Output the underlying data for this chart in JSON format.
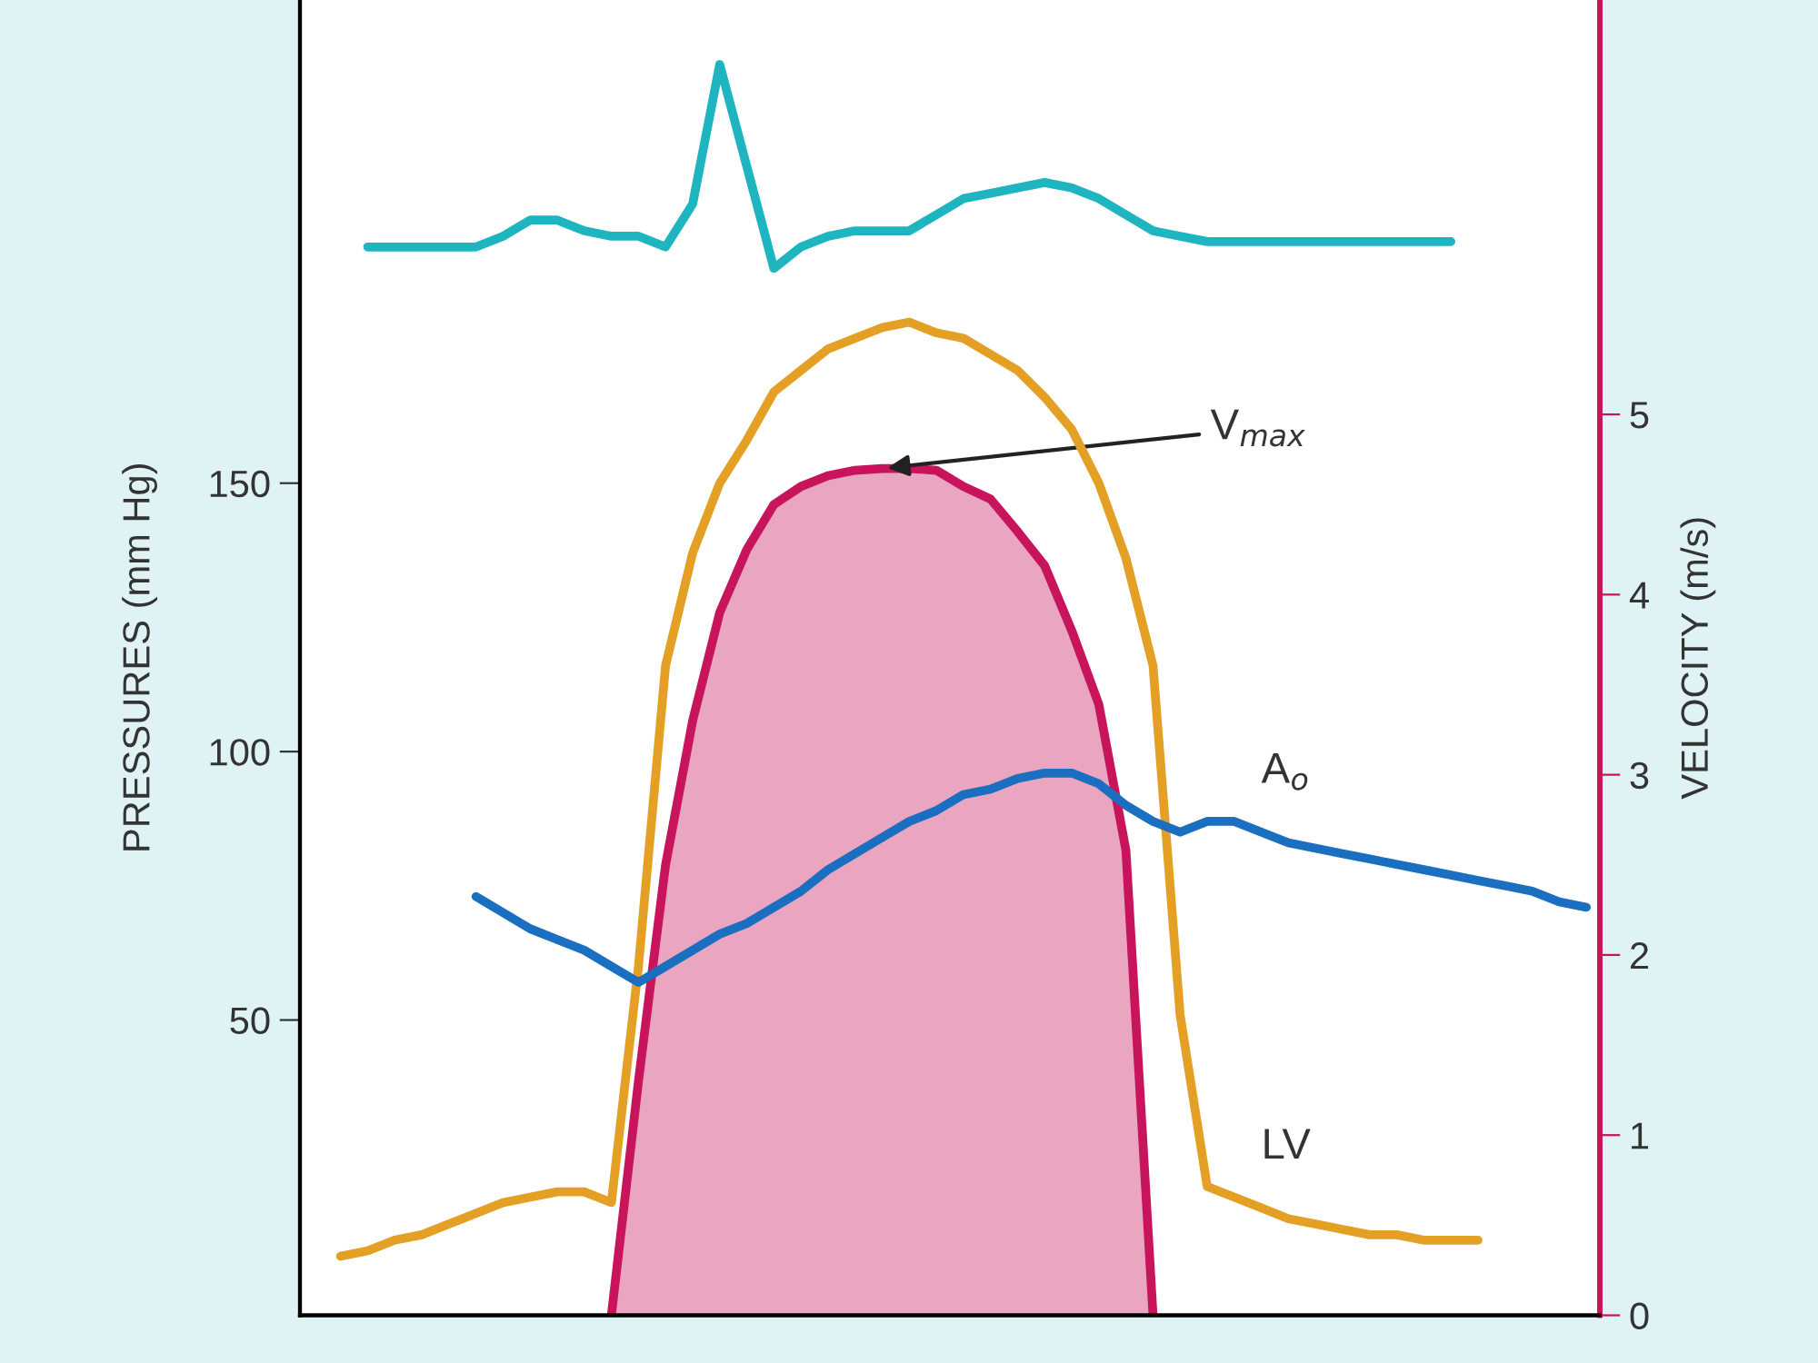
{
  "chart_data": {
    "type": "line",
    "categories": [
      null,
      null,
      null,
      null,
      null,
      null,
      null,
      null,
      null,
      null,
      null,
      null,
      null,
      null,
      null,
      null,
      null,
      null,
      null,
      null,
      null,
      null,
      null,
      null,
      null,
      null,
      null,
      null,
      null,
      null,
      null,
      null,
      null,
      null,
      null,
      null,
      null,
      null,
      null,
      null,
      null,
      null,
      null,
      null,
      null,
      null,
      null,
      null
    ],
    "ylim": [
      -5,
      240
    ],
    "yticks": [
      50,
      100,
      150
    ],
    "y2lim": [
      0,
      7.3
    ],
    "y2ticks": [
      0,
      1,
      2,
      3,
      4,
      5
    ],
    "ylabel": "PRESSURES (mm Hg)",
    "y2label": "VELOCITY (m/s)",
    "tick_labels": "y",
    "grid": false,
    "legend": false,
    "series": [
      {
        "color": "#1fb5c0",
        "values": [
          null,
          null,
          194,
          194,
          194,
          194,
          194,
          196,
          199,
          199,
          197,
          196,
          196,
          194,
          202,
          228,
          209,
          190,
          194,
          196,
          197,
          197,
          197,
          200,
          203,
          204,
          205,
          206,
          205,
          203,
          200,
          197,
          196,
          195,
          195,
          195,
          195,
          195,
          195,
          195,
          195,
          195,
          195,
          null,
          null,
          null,
          null,
          null
        ]
      },
      {
        "name": "LV",
        "color": "#e3a025",
        "values": [
          null,
          6,
          7,
          9,
          10,
          12,
          14,
          16,
          17,
          18,
          18,
          16,
          60,
          116,
          137,
          150,
          158,
          167,
          171,
          175,
          177,
          179,
          180,
          178,
          177,
          174,
          171,
          166,
          160,
          150,
          136,
          116,
          51,
          19,
          17,
          15,
          13,
          12,
          11,
          10,
          10,
          9,
          9,
          9,
          null,
          null,
          null,
          null
        ]
      },
      {
        "name": "A$_{o}$",
        "color": "#1a6fc0",
        "values": [
          null,
          null,
          null,
          null,
          null,
          null,
          73,
          70,
          67,
          65,
          63,
          60,
          57,
          60,
          63,
          66,
          68,
          71,
          74,
          78,
          81,
          84,
          87,
          89,
          92,
          93,
          95,
          96,
          96,
          94,
          90,
          87,
          85,
          87,
          87,
          85,
          83,
          82,
          81,
          80,
          79,
          78,
          77,
          76,
          75,
          74,
          72,
          71
        ]
      },
      {
        "type": "area",
        "axis": "y2",
        "color": "#c8145a",
        "values": [
          null,
          null,
          null,
          null,
          null,
          null,
          null,
          null,
          null,
          null,
          null,
          0,
          1.3,
          2.5,
          3.3,
          3.9,
          4.25,
          4.5,
          4.6,
          4.66,
          4.69,
          4.7,
          4.7,
          4.69,
          4.6,
          4.53,
          4.35,
          4.16,
          3.8,
          3.39,
          2.58,
          0,
          null,
          null,
          null,
          null,
          null,
          null,
          null,
          null,
          null,
          null,
          null,
          null,
          null,
          null,
          null,
          null
        ]
      }
    ],
    "annotations": [
      "V$_{max}$"
    ]
  }
}
